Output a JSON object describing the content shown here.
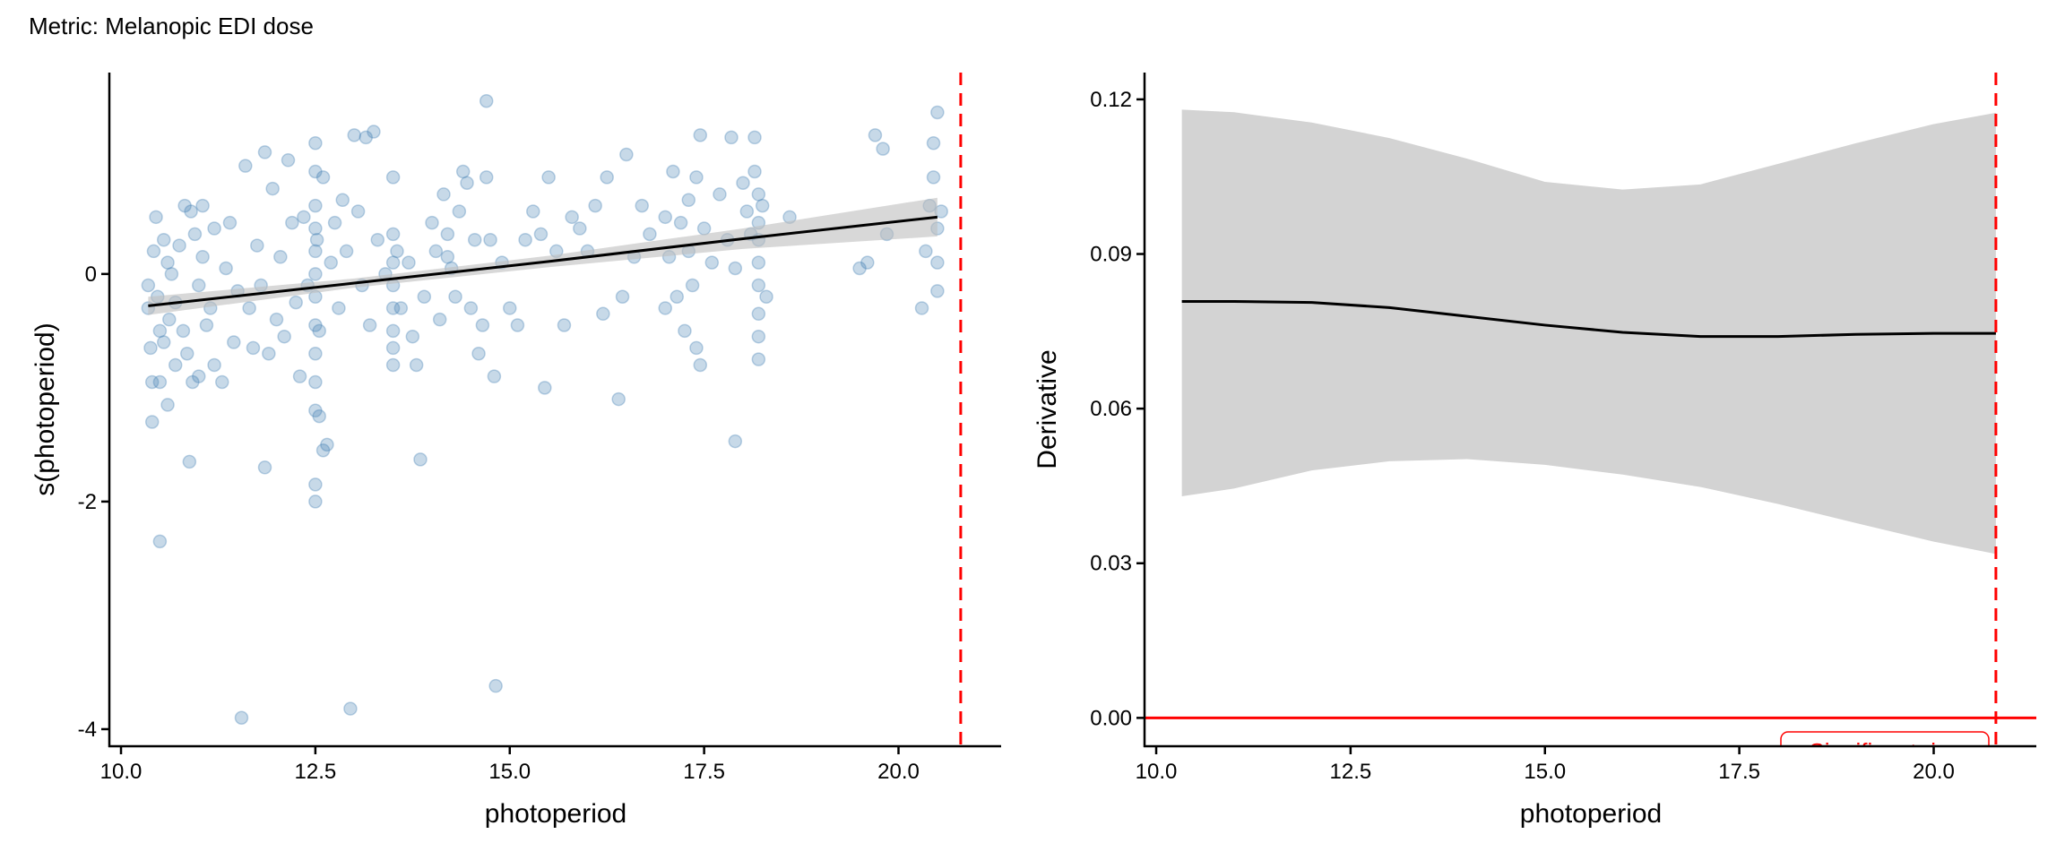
{
  "title": "Metric: Melanopic EDI dose",
  "chart_data": [
    {
      "type": "scatter",
      "xlabel": "photoperiod",
      "ylabel": "s(photoperiod)",
      "xlim": [
        9.85,
        21.32
      ],
      "ylim": [
        -4.15,
        1.77
      ],
      "xticks": [
        "10.0",
        "12.5",
        "15.0",
        "17.5",
        "20.0"
      ],
      "xtick_values": [
        10,
        12.5,
        15,
        17.5,
        20
      ],
      "yticks": [
        "0",
        "-2",
        "-4"
      ],
      "ytick_values": [
        0,
        -2,
        -4
      ],
      "point_color": "#4682B4",
      "fit_color": "#000000",
      "band_color": "#BEBEBE",
      "vline": {
        "x": 20.8,
        "color": "#FF0000",
        "style": "dashed"
      },
      "fit": {
        "x": [
          10.35,
          13.0,
          15.5,
          18.0,
          20.5
        ],
        "y": [
          -0.28,
          -0.08,
          0.11,
          0.31,
          0.5
        ],
        "lower": [
          -0.36,
          -0.12,
          0.06,
          0.22,
          0.33
        ],
        "upper": [
          -0.2,
          -0.04,
          0.16,
          0.4,
          0.67
        ]
      },
      "points": [
        [
          10.35,
          -0.1
        ],
        [
          10.35,
          -0.3
        ],
        [
          10.38,
          -0.65
        ],
        [
          10.4,
          -0.95
        ],
        [
          10.4,
          -1.3
        ],
        [
          10.42,
          0.2
        ],
        [
          10.45,
          0.5
        ],
        [
          10.47,
          -0.2
        ],
        [
          10.5,
          -0.5
        ],
        [
          10.5,
          -0.95
        ],
        [
          10.5,
          -2.35
        ],
        [
          10.55,
          0.3
        ],
        [
          10.55,
          -0.6
        ],
        [
          10.6,
          -1.15
        ],
        [
          10.6,
          0.1
        ],
        [
          10.62,
          -0.4
        ],
        [
          10.65,
          0.0
        ],
        [
          10.7,
          -0.25
        ],
        [
          10.7,
          -0.8
        ],
        [
          10.75,
          0.25
        ],
        [
          10.8,
          -0.5
        ],
        [
          10.82,
          0.6
        ],
        [
          10.85,
          -0.7
        ],
        [
          10.88,
          -1.65
        ],
        [
          10.9,
          0.55
        ],
        [
          10.92,
          -0.95
        ],
        [
          10.95,
          0.35
        ],
        [
          11.0,
          -0.1
        ],
        [
          11.0,
          -0.9
        ],
        [
          11.05,
          0.15
        ],
        [
          11.05,
          0.6
        ],
        [
          11.1,
          -0.45
        ],
        [
          11.15,
          -0.3
        ],
        [
          11.2,
          0.4
        ],
        [
          11.2,
          -0.8
        ],
        [
          11.3,
          -0.95
        ],
        [
          11.35,
          0.05
        ],
        [
          11.4,
          0.45
        ],
        [
          11.45,
          -0.6
        ],
        [
          11.5,
          -0.15
        ],
        [
          11.55,
          -3.9
        ],
        [
          11.6,
          0.95
        ],
        [
          11.65,
          -0.3
        ],
        [
          11.7,
          -0.65
        ],
        [
          11.75,
          0.25
        ],
        [
          11.8,
          -0.1
        ],
        [
          11.85,
          1.07
        ],
        [
          11.85,
          -1.7
        ],
        [
          11.9,
          -0.7
        ],
        [
          11.95,
          0.75
        ],
        [
          12.0,
          -0.4
        ],
        [
          12.05,
          0.15
        ],
        [
          12.1,
          -0.55
        ],
        [
          12.15,
          1.0
        ],
        [
          12.2,
          0.45
        ],
        [
          12.25,
          -0.25
        ],
        [
          12.3,
          -0.9
        ],
        [
          12.35,
          0.5
        ],
        [
          12.4,
          -0.1
        ],
        [
          12.5,
          1.15
        ],
        [
          12.5,
          0.9
        ],
        [
          12.5,
          0.6
        ],
        [
          12.5,
          0.4
        ],
        [
          12.5,
          0.2
        ],
        [
          12.5,
          0.0
        ],
        [
          12.5,
          -0.2
        ],
        [
          12.5,
          -0.45
        ],
        [
          12.5,
          -0.7
        ],
        [
          12.5,
          -0.95
        ],
        [
          12.5,
          -1.2
        ],
        [
          12.5,
          -1.85
        ],
        [
          12.5,
          -2.0
        ],
        [
          12.52,
          0.3
        ],
        [
          12.55,
          -0.5
        ],
        [
          12.55,
          -1.25
        ],
        [
          12.6,
          0.85
        ],
        [
          12.6,
          -1.55
        ],
        [
          12.65,
          -1.5
        ],
        [
          12.7,
          0.1
        ],
        [
          12.75,
          0.45
        ],
        [
          12.8,
          -0.3
        ],
        [
          12.85,
          0.65
        ],
        [
          12.9,
          0.2
        ],
        [
          12.95,
          -3.82
        ],
        [
          13.0,
          1.22
        ],
        [
          13.05,
          0.55
        ],
        [
          13.1,
          -0.1
        ],
        [
          13.15,
          1.2
        ],
        [
          13.2,
          -0.45
        ],
        [
          13.25,
          1.25
        ],
        [
          13.3,
          0.3
        ],
        [
          13.4,
          0.0
        ],
        [
          13.5,
          0.85
        ],
        [
          13.5,
          0.35
        ],
        [
          13.5,
          0.1
        ],
        [
          13.5,
          -0.1
        ],
        [
          13.5,
          -0.3
        ],
        [
          13.5,
          -0.5
        ],
        [
          13.5,
          -0.65
        ],
        [
          13.5,
          -0.8
        ],
        [
          13.55,
          0.2
        ],
        [
          13.6,
          -0.3
        ],
        [
          13.7,
          0.1
        ],
        [
          13.75,
          -0.55
        ],
        [
          13.8,
          -0.8
        ],
        [
          13.85,
          -1.63
        ],
        [
          13.9,
          -0.2
        ],
        [
          14.0,
          0.45
        ],
        [
          14.05,
          0.2
        ],
        [
          14.1,
          -0.4
        ],
        [
          14.15,
          0.7
        ],
        [
          14.2,
          0.35
        ],
        [
          14.2,
          0.15
        ],
        [
          14.25,
          0.05
        ],
        [
          14.3,
          -0.2
        ],
        [
          14.35,
          0.55
        ],
        [
          14.4,
          0.9
        ],
        [
          14.45,
          0.8
        ],
        [
          14.5,
          -0.3
        ],
        [
          14.55,
          0.3
        ],
        [
          14.6,
          -0.7
        ],
        [
          14.65,
          -0.45
        ],
        [
          14.7,
          0.85
        ],
        [
          14.7,
          1.52
        ],
        [
          14.75,
          0.3
        ],
        [
          14.8,
          -0.9
        ],
        [
          14.82,
          -3.62
        ],
        [
          14.9,
          0.1
        ],
        [
          15.0,
          -0.3
        ],
        [
          15.1,
          -0.45
        ],
        [
          15.2,
          0.3
        ],
        [
          15.3,
          0.55
        ],
        [
          15.4,
          0.35
        ],
        [
          15.45,
          -1.0
        ],
        [
          15.5,
          0.85
        ],
        [
          15.6,
          0.2
        ],
        [
          15.7,
          -0.45
        ],
        [
          15.8,
          0.5
        ],
        [
          15.9,
          0.4
        ],
        [
          16.0,
          0.2
        ],
        [
          16.1,
          0.6
        ],
        [
          16.2,
          -0.35
        ],
        [
          16.25,
          0.85
        ],
        [
          16.4,
          -1.1
        ],
        [
          16.45,
          -0.2
        ],
        [
          16.5,
          1.05
        ],
        [
          16.6,
          0.15
        ],
        [
          16.7,
          0.6
        ],
        [
          16.8,
          0.35
        ],
        [
          17.0,
          0.5
        ],
        [
          17.0,
          -0.3
        ],
        [
          17.05,
          0.15
        ],
        [
          17.1,
          0.9
        ],
        [
          17.15,
          -0.2
        ],
        [
          17.2,
          0.45
        ],
        [
          17.25,
          -0.5
        ],
        [
          17.3,
          0.65
        ],
        [
          17.3,
          0.2
        ],
        [
          17.35,
          -0.1
        ],
        [
          17.4,
          0.85
        ],
        [
          17.4,
          -0.65
        ],
        [
          17.45,
          1.22
        ],
        [
          17.45,
          -0.8
        ],
        [
          17.5,
          0.4
        ],
        [
          17.6,
          0.1
        ],
        [
          17.7,
          0.7
        ],
        [
          17.8,
          0.3
        ],
        [
          17.85,
          1.2
        ],
        [
          17.9,
          -1.47
        ],
        [
          17.9,
          0.05
        ],
        [
          18.0,
          0.8
        ],
        [
          18.05,
          0.55
        ],
        [
          18.1,
          0.35
        ],
        [
          18.15,
          1.2
        ],
        [
          18.15,
          0.9
        ],
        [
          18.2,
          0.7
        ],
        [
          18.2,
          0.45
        ],
        [
          18.2,
          0.3
        ],
        [
          18.2,
          0.1
        ],
        [
          18.2,
          -0.1
        ],
        [
          18.2,
          -0.35
        ],
        [
          18.2,
          -0.55
        ],
        [
          18.2,
          -0.75
        ],
        [
          18.25,
          0.6
        ],
        [
          18.3,
          -0.2
        ],
        [
          18.6,
          0.5
        ],
        [
          19.5,
          0.05
        ],
        [
          19.6,
          0.1
        ],
        [
          19.7,
          1.22
        ],
        [
          19.8,
          1.1
        ],
        [
          19.85,
          0.35
        ],
        [
          20.3,
          -0.3
        ],
        [
          20.35,
          0.2
        ],
        [
          20.4,
          0.6
        ],
        [
          20.45,
          0.85
        ],
        [
          20.45,
          1.15
        ],
        [
          20.5,
          1.42
        ],
        [
          20.5,
          0.4
        ],
        [
          20.5,
          -0.15
        ],
        [
          20.5,
          0.1
        ],
        [
          20.55,
          0.55
        ]
      ]
    },
    {
      "type": "line",
      "xlabel": "photoperiod",
      "ylabel": "Derivative",
      "xlim": [
        9.85,
        21.32
      ],
      "ylim": [
        -0.0055,
        0.1252
      ],
      "xticks": [
        "10.0",
        "12.5",
        "15.0",
        "17.5",
        "20.0"
      ],
      "xtick_values": [
        10,
        12.5,
        15,
        17.5,
        20
      ],
      "yticks": [
        "0.00",
        "0.03",
        "0.06",
        "0.09",
        "0.12"
      ],
      "ytick_values": [
        0,
        0.03,
        0.06,
        0.09,
        0.12
      ],
      "line_color": "#000000",
      "band_color": "#D3D3D3",
      "hline": {
        "y": 0,
        "color": "#FF0000"
      },
      "vline": {
        "x": 20.8,
        "color": "#FF0000",
        "style": "dashed"
      },
      "annotation": "Significant rise",
      "series": {
        "x": [
          10.33,
          11.0,
          12.0,
          13.0,
          14.0,
          15.0,
          16.0,
          17.0,
          18.0,
          19.0,
          20.0,
          20.8
        ],
        "y": [
          0.0808,
          0.0808,
          0.0806,
          0.0796,
          0.0779,
          0.0762,
          0.0748,
          0.074,
          0.074,
          0.0744,
          0.0746,
          0.0746
        ],
        "lower": [
          0.043,
          0.0445,
          0.048,
          0.0498,
          0.0502,
          0.0491,
          0.0472,
          0.0448,
          0.0415,
          0.0378,
          0.0342,
          0.0318
        ],
        "upper": [
          0.118,
          0.1175,
          0.1155,
          0.1125,
          0.1085,
          0.104,
          0.1025,
          0.1035,
          0.1075,
          0.1115,
          0.1152,
          0.1174
        ]
      }
    }
  ]
}
